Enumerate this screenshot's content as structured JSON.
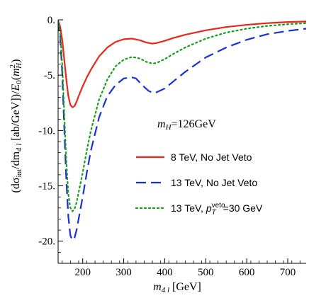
{
  "chart_data": {
    "type": "line",
    "xlabel_main": "m",
    "xlabel_sub": "4 l",
    "xlabel_unit": " [GeV]",
    "ylabel_parts": {
      "open": "(dσ",
      "sub1": "int",
      "mid": "/dm",
      "sub2": "4 l",
      "mid2": " [ab/GeV])/",
      "e": "E",
      "esub": "0",
      "paren": "(",
      "m": "m",
      "msup": "2",
      "msub": "H",
      "close": ")"
    },
    "xlim": [
      140,
      745
    ],
    "ylim": [
      -22,
      0
    ],
    "xticks": [
      200,
      300,
      400,
      500,
      600,
      700
    ],
    "xtick_labels": [
      "200",
      "300",
      "400",
      "500",
      "600",
      "700"
    ],
    "yticks": [
      0,
      -5,
      -10,
      -15,
      -20
    ],
    "ytick_labels": [
      "0.",
      "-5.",
      "-10.",
      "-15.",
      "-20."
    ],
    "annotation": {
      "m": "m",
      "sub": "H",
      "rest": "=126GeV"
    },
    "legend": [
      {
        "label": "8 TeV, No Jet Veto",
        "color": "#e8271c",
        "dash": ""
      },
      {
        "label": "13 TeV, No Jet Veto",
        "color": "#1a2fd4",
        "dash": "14,7"
      },
      {
        "label_prefix": "13 TeV, ",
        "label_p": "p",
        "label_sub": "T",
        "label_sup": "veto",
        "label_suffix": "=30 GeV",
        "color": "#1a9b1a",
        "dash": "2,4"
      }
    ],
    "series": [
      {
        "color": "#e8271c",
        "dash": "",
        "width": 2.2,
        "x": [
          140,
          145,
          150,
          155,
          160,
          165,
          170,
          175,
          180,
          185,
          190,
          200,
          210,
          220,
          240,
          260,
          280,
          300,
          320,
          340,
          355,
          370,
          380,
          400,
          420,
          450,
          500,
          550,
          600,
          650,
          700,
          745
        ],
        "y": [
          -0.1,
          -0.6,
          -1.8,
          -3.6,
          -5.4,
          -6.9,
          -7.7,
          -7.9,
          -7.8,
          -7.4,
          -6.9,
          -6.0,
          -5.2,
          -4.5,
          -3.3,
          -2.5,
          -2.0,
          -1.75,
          -1.7,
          -1.85,
          -2.05,
          -2.15,
          -2.1,
          -1.9,
          -1.65,
          -1.35,
          -0.95,
          -0.65,
          -0.45,
          -0.3,
          -0.2,
          -0.15
        ]
      },
      {
        "color": "#1a2fd4",
        "dash": "14,7",
        "width": 2.2,
        "x": [
          140,
          145,
          150,
          155,
          160,
          165,
          170,
          175,
          180,
          185,
          190,
          200,
          210,
          220,
          240,
          260,
          280,
          300,
          320,
          330,
          345,
          360,
          370,
          380,
          400,
          420,
          450,
          500,
          550,
          600,
          650,
          700,
          745
        ],
        "y": [
          -0.1,
          -1.5,
          -4.8,
          -9.8,
          -14.5,
          -17.8,
          -19.5,
          -19.9,
          -19.7,
          -19.0,
          -18.0,
          -16.0,
          -13.8,
          -11.8,
          -8.8,
          -6.9,
          -5.9,
          -5.3,
          -5.2,
          -5.3,
          -5.9,
          -6.4,
          -6.6,
          -6.55,
          -6.2,
          -5.6,
          -4.7,
          -3.4,
          -2.5,
          -1.8,
          -1.3,
          -1.0,
          -0.8
        ]
      },
      {
        "color": "#1a9b1a",
        "dash": "2,4",
        "width": 2.2,
        "x": [
          140,
          145,
          150,
          155,
          160,
          165,
          170,
          175,
          180,
          185,
          190,
          200,
          210,
          220,
          240,
          260,
          280,
          300,
          320,
          340,
          355,
          370,
          380,
          400,
          420,
          450,
          500,
          550,
          600,
          650,
          700,
          745
        ],
        "y": [
          -0.1,
          -1.2,
          -4.0,
          -8.5,
          -12.8,
          -15.8,
          -17.0,
          -17.3,
          -17.1,
          -16.5,
          -15.6,
          -13.8,
          -11.8,
          -10.0,
          -7.2,
          -5.4,
          -4.2,
          -3.6,
          -3.35,
          -3.5,
          -3.8,
          -3.95,
          -3.9,
          -3.55,
          -3.1,
          -2.5,
          -1.7,
          -1.15,
          -0.8,
          -0.55,
          -0.4,
          -0.3
        ]
      }
    ],
    "grid": false,
    "legend_position": "center-right"
  }
}
